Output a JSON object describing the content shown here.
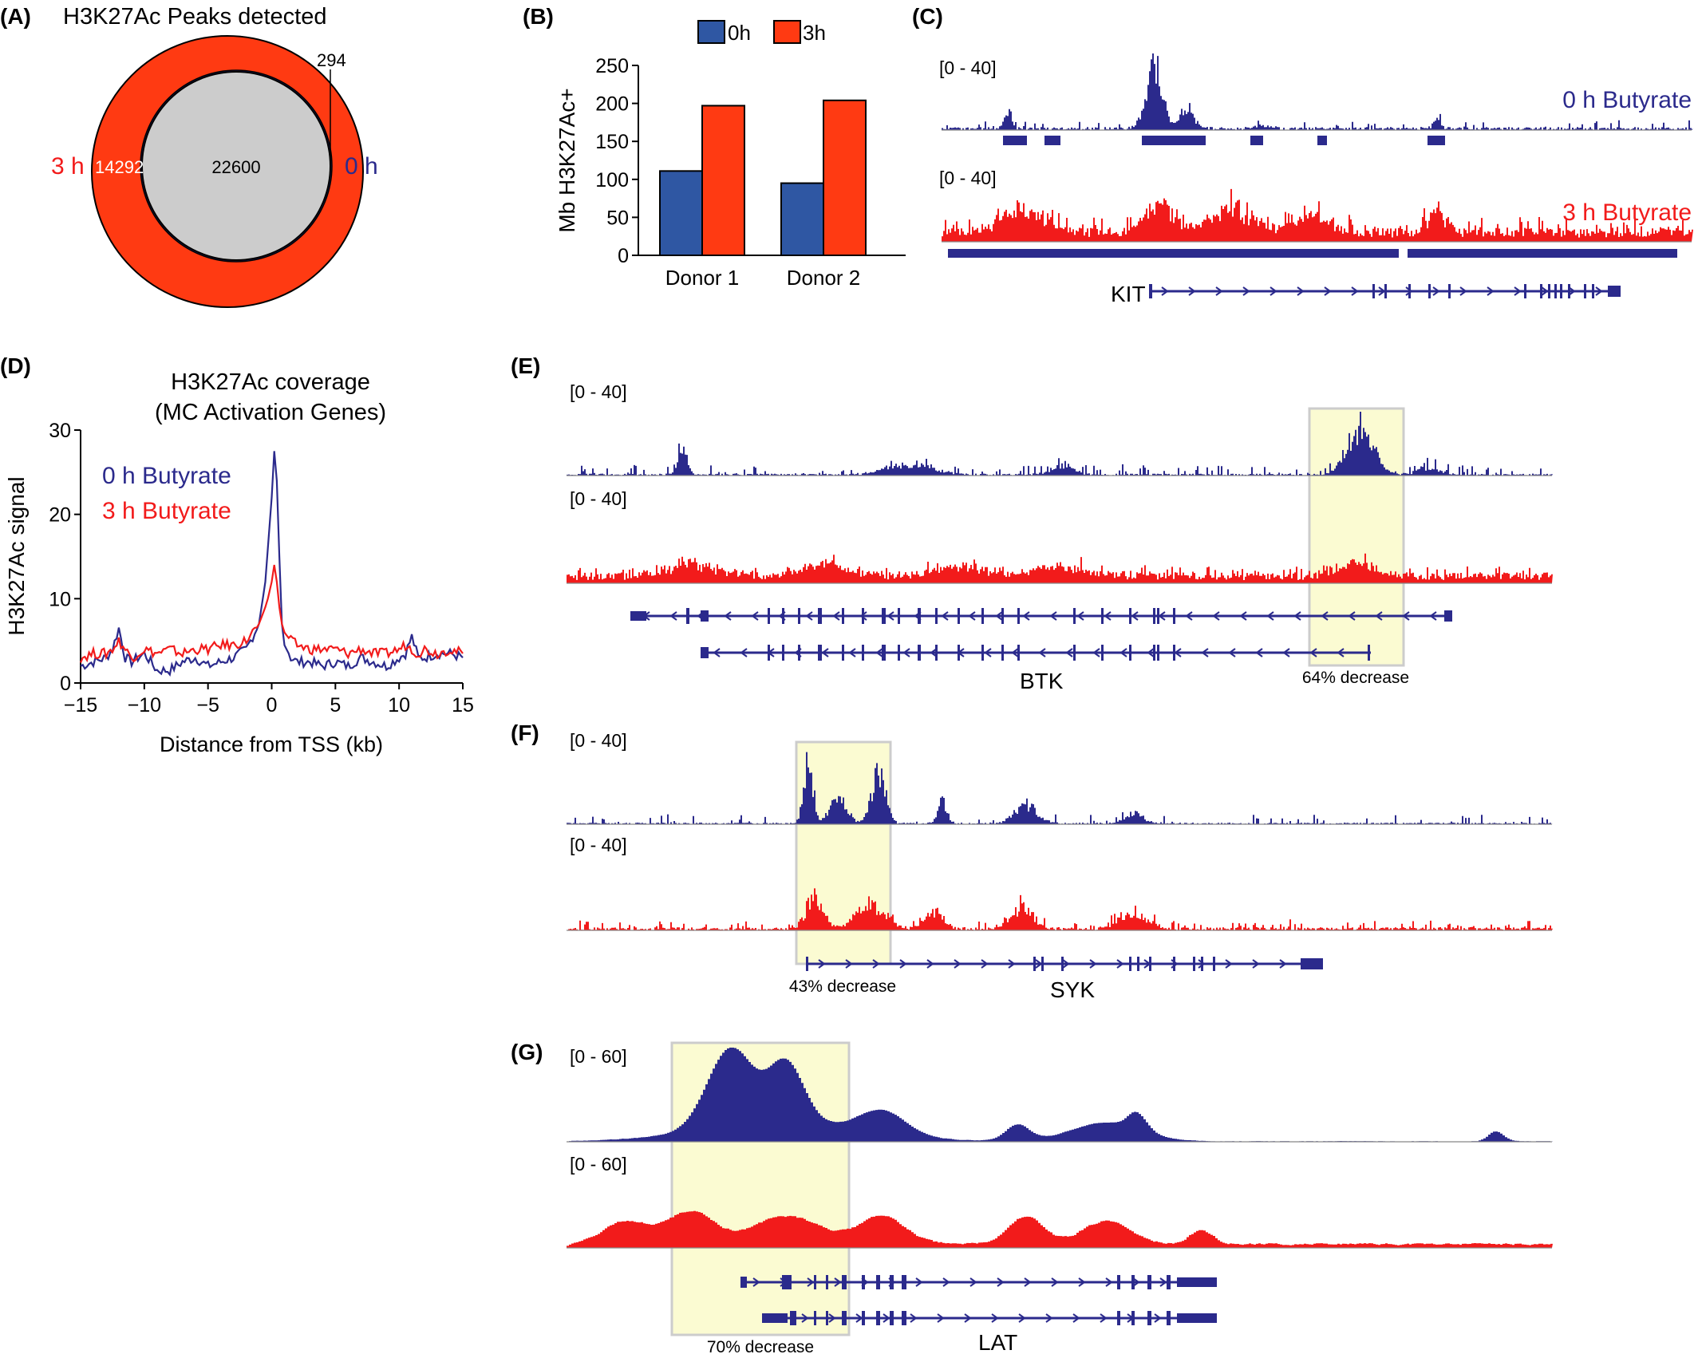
{
  "colors": {
    "blue": "#2b2a8c",
    "red": "#f21b1b",
    "bar_blue": "#2f57a3",
    "bar_red": "#ff3a12",
    "venn_red": "#ff3a12",
    "venn_gray": "#cccccc",
    "highlight": "#fbfbd2",
    "highlight_border": "#cccccc"
  },
  "panels": {
    "A": {
      "letter": "(A)",
      "title": "H3K27Ac Peaks detected",
      "label_3h": "3 h",
      "label_0h": "0 h",
      "only_3h": "14292",
      "shared": "22600",
      "only_0h": "294"
    },
    "B": {
      "letter": "(B)",
      "legend_0h": "0h",
      "legend_3h": "3h"
    },
    "C": {
      "letter": "(C)",
      "range1": "[0 - 40]",
      "range2": "[0 - 40]",
      "label_0h": "0 h Butyrate",
      "label_3h": "3 h Butyrate",
      "gene": "KIT"
    },
    "D": {
      "letter": "(D)",
      "title1": "H3K27Ac coverage",
      "title2": "(MC Activation Genes)",
      "legend_0h": "0 h Butyrate",
      "legend_3h": "3 h Butyrate"
    },
    "E": {
      "letter": "(E)",
      "range1": "[0 - 40]",
      "range2": "[0 - 40]",
      "gene": "BTK",
      "note": "64% decrease"
    },
    "F": {
      "letter": "(F)",
      "range1": "[0 - 40]",
      "range2": "[0 - 40]",
      "gene": "SYK",
      "note": "43% decrease"
    },
    "G": {
      "letter": "(G)",
      "range1": "[0 - 60]",
      "range2": "[0 - 60]",
      "gene": "LAT",
      "note": "70% decrease"
    }
  },
  "chart_data": [
    {
      "panel": "A",
      "type": "venn",
      "title": "H3K27Ac Peaks detected",
      "sets": [
        {
          "name": "3 h",
          "only": 14292
        },
        {
          "name": "0 h",
          "only": 294
        }
      ],
      "intersection": 22600
    },
    {
      "panel": "B",
      "type": "bar",
      "categories": [
        "Donor 1",
        "Donor 2"
      ],
      "series": [
        {
          "name": "0h",
          "values": [
            111,
            95
          ]
        },
        {
          "name": "3h",
          "values": [
            197,
            204
          ]
        }
      ],
      "ylabel": "Mb H3K27Ac+",
      "ylim": [
        0,
        250
      ],
      "yticks": [
        0,
        50,
        100,
        150,
        200,
        250
      ]
    },
    {
      "panel": "D",
      "type": "line",
      "title": "H3K27Ac coverage (MC Activation Genes)",
      "xlabel": "Distance from TSS (kb)",
      "ylabel": "H3K27Ac signal",
      "xlim": [
        -15,
        15
      ],
      "ylim": [
        0,
        30
      ],
      "xticks": [
        -15,
        -10,
        -5,
        0,
        5,
        10,
        15
      ],
      "yticks": [
        0,
        10,
        20,
        30
      ],
      "x": [
        -15,
        -14,
        -13,
        -12.5,
        -12,
        -11.5,
        -11,
        -10,
        -9,
        -8,
        -7,
        -6,
        -5,
        -4,
        -3,
        -2,
        -1.5,
        -1,
        -0.5,
        -0.3,
        0,
        0.2,
        0.4,
        0.6,
        0.8,
        1,
        1.5,
        2,
        3,
        4,
        5,
        6,
        7,
        8,
        9,
        10,
        10.5,
        11,
        11.5,
        12,
        13,
        14,
        15
      ],
      "series": [
        {
          "name": "0 h Butyrate",
          "values": [
            2,
            2.5,
            3,
            4,
            6.5,
            3,
            2.5,
            3.5,
            1.5,
            1.5,
            2.5,
            3,
            2,
            2.5,
            3,
            4,
            5.5,
            7,
            12,
            16,
            22,
            27.5,
            24,
            15,
            7,
            4.5,
            3,
            2.5,
            2.5,
            2,
            2.5,
            2,
            3,
            2.5,
            2,
            3,
            3.5,
            5.5,
            3,
            3,
            3.5,
            3.5,
            3
          ]
        },
        {
          "name": "3 h Butyrate",
          "values": [
            3,
            3.5,
            3.5,
            4,
            5,
            4,
            3,
            4,
            3.5,
            4,
            3.5,
            4,
            4,
            4.5,
            4.5,
            5,
            6,
            7,
            9,
            10,
            12,
            14,
            12,
            9,
            7,
            6,
            5,
            4.5,
            4,
            4,
            4,
            3.5,
            4,
            3.5,
            3.5,
            4,
            4.5,
            4,
            3.5,
            4,
            3.5,
            4,
            3.5
          ]
        }
      ]
    }
  ]
}
